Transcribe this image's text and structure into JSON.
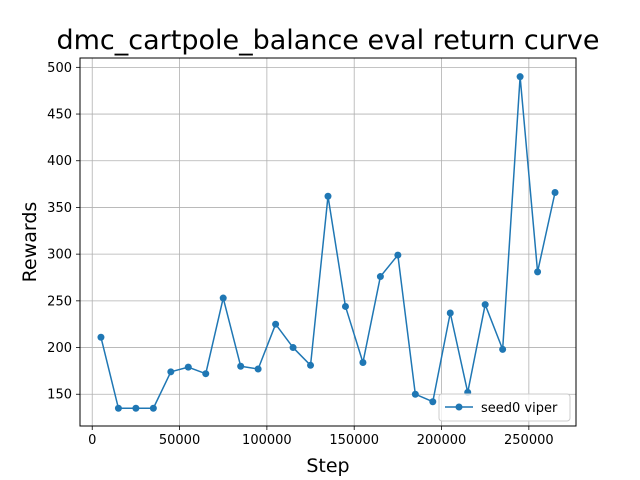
{
  "chart_data": {
    "type": "line",
    "title": "dmc_cartpole_balance eval return curve",
    "xlabel": "Step",
    "ylabel": "Rewards",
    "xlim": [
      -7000,
      277000
    ],
    "ylim": [
      116,
      510
    ],
    "xticks": [
      0,
      50000,
      100000,
      150000,
      200000,
      250000
    ],
    "yticks": [
      150,
      200,
      250,
      300,
      350,
      400,
      450,
      500
    ],
    "xtick_labels": [
      "0",
      "50000",
      "100000",
      "150000",
      "200000",
      "250000"
    ],
    "ytick_labels": [
      "150",
      "200",
      "250",
      "300",
      "350",
      "400",
      "450",
      "500"
    ],
    "grid": true,
    "legend_position": "lower-right",
    "series": [
      {
        "name": "seed0 viper",
        "color": "#1f77b4",
        "marker": "circle",
        "x": [
          5000,
          15000,
          25000,
          35000,
          45000,
          55000,
          65000,
          75000,
          85000,
          95000,
          105000,
          115000,
          125000,
          135000,
          145000,
          155000,
          165000,
          175000,
          185000,
          195000,
          205000,
          215000,
          225000,
          235000,
          245000,
          255000,
          265000
        ],
        "y": [
          211,
          135,
          135,
          135,
          174,
          179,
          172,
          253,
          180,
          177,
          225,
          200,
          181,
          362,
          244,
          184,
          276,
          299,
          150,
          142,
          237,
          152,
          246,
          198,
          490,
          281,
          366
        ]
      }
    ]
  }
}
